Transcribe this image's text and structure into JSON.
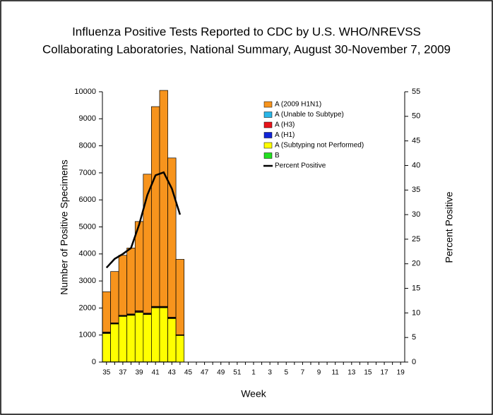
{
  "chart_data": {
    "type": "bar",
    "title": "Influenza Positive Tests Reported to CDC by U.S. WHO/NREVSS",
    "subtitle": "Collaborating Laboratories, National Summary, August 30-November 7, 2009",
    "x_label": "Week",
    "y_label": "Number of Positive Specimens",
    "y2_label": "Percent Positive",
    "categories": [
      "35",
      null,
      "37",
      null,
      "39",
      null,
      "41",
      null,
      "43",
      null,
      "45",
      null,
      "47",
      null,
      "49",
      null,
      "51",
      null,
      "1",
      null,
      "3",
      null,
      "5",
      null,
      "7",
      null,
      "9",
      null,
      "11",
      null,
      "13",
      null,
      "15",
      null,
      "17",
      null,
      "19"
    ],
    "ylim": [
      0,
      10000
    ],
    "yticks": [
      0,
      1000,
      2000,
      3000,
      4000,
      5000,
      6000,
      7000,
      8000,
      9000,
      10000
    ],
    "y2lim": [
      0,
      55
    ],
    "y2ticks": [
      0,
      5,
      10,
      15,
      20,
      25,
      30,
      35,
      40,
      45,
      50,
      55
    ],
    "series": [
      {
        "name": "A (2009 H1N1)",
        "color": "#f7941d",
        "values": [
          1490,
          1900,
          2220,
          2440,
          3300,
          5140,
          7390,
          7990,
          5890,
          2790,
          null,
          null,
          null,
          null,
          null,
          null,
          null,
          null,
          null,
          null,
          null,
          null,
          null,
          null,
          null,
          null,
          null,
          null,
          null,
          null,
          null,
          null,
          null,
          null,
          null,
          null,
          null
        ]
      },
      {
        "name": "A (Unable to Subtype)",
        "color": "#29b6e8",
        "values": [
          20,
          20,
          20,
          20,
          20,
          20,
          20,
          20,
          20,
          10,
          null,
          null,
          null,
          null,
          null,
          null,
          null,
          null,
          null,
          null,
          null,
          null,
          null,
          null,
          null,
          null,
          null,
          null,
          null,
          null,
          null,
          null,
          null,
          null,
          null,
          null,
          null
        ]
      },
      {
        "name": "A (H3)",
        "color": "#e8141b",
        "values": [
          20,
          10,
          10,
          20,
          30,
          20,
          20,
          20,
          20,
          10,
          null,
          null,
          null,
          null,
          null,
          null,
          null,
          null,
          null,
          null,
          null,
          null,
          null,
          null,
          null,
          null,
          null,
          null,
          null,
          null,
          null,
          null,
          null,
          null,
          null,
          null,
          null
        ]
      },
      {
        "name": "A (H1)",
        "color": "#1024d8",
        "values": [
          10,
          10,
          10,
          10,
          10,
          10,
          10,
          10,
          10,
          5,
          null,
          null,
          null,
          null,
          null,
          null,
          null,
          null,
          null,
          null,
          null,
          null,
          null,
          null,
          null,
          null,
          null,
          null,
          null,
          null,
          null,
          null,
          null,
          null,
          null,
          null,
          null
        ]
      },
      {
        "name": "A (Subtyping not Performed)",
        "color": "#ffff00",
        "values": [
          1050,
          1400,
          1680,
          1720,
          1830,
          1750,
          2000,
          2000,
          1600,
          980,
          null,
          null,
          null,
          null,
          null,
          null,
          null,
          null,
          null,
          null,
          null,
          null,
          null,
          null,
          null,
          null,
          null,
          null,
          null,
          null,
          null,
          null,
          null,
          null,
          null,
          null,
          null
        ]
      },
      {
        "name": "B",
        "color": "#22e01f",
        "values": [
          10,
          10,
          10,
          10,
          10,
          10,
          10,
          10,
          10,
          5,
          null,
          null,
          null,
          null,
          null,
          null,
          null,
          null,
          null,
          null,
          null,
          null,
          null,
          null,
          null,
          null,
          null,
          null,
          null,
          null,
          null,
          null,
          null,
          null,
          null,
          null,
          null
        ]
      },
      {
        "name": "Percent Positive",
        "color": "#000000",
        "axis": "y2",
        "values": [
          19.2,
          21,
          22,
          23.2,
          28,
          34,
          38,
          38.6,
          35.3,
          30,
          null,
          null,
          null,
          null,
          null,
          null,
          null,
          null,
          null,
          null,
          null,
          null,
          null,
          null,
          null,
          null,
          null,
          null,
          null,
          null,
          null,
          null,
          null,
          null,
          null,
          null,
          null
        ]
      }
    ]
  }
}
